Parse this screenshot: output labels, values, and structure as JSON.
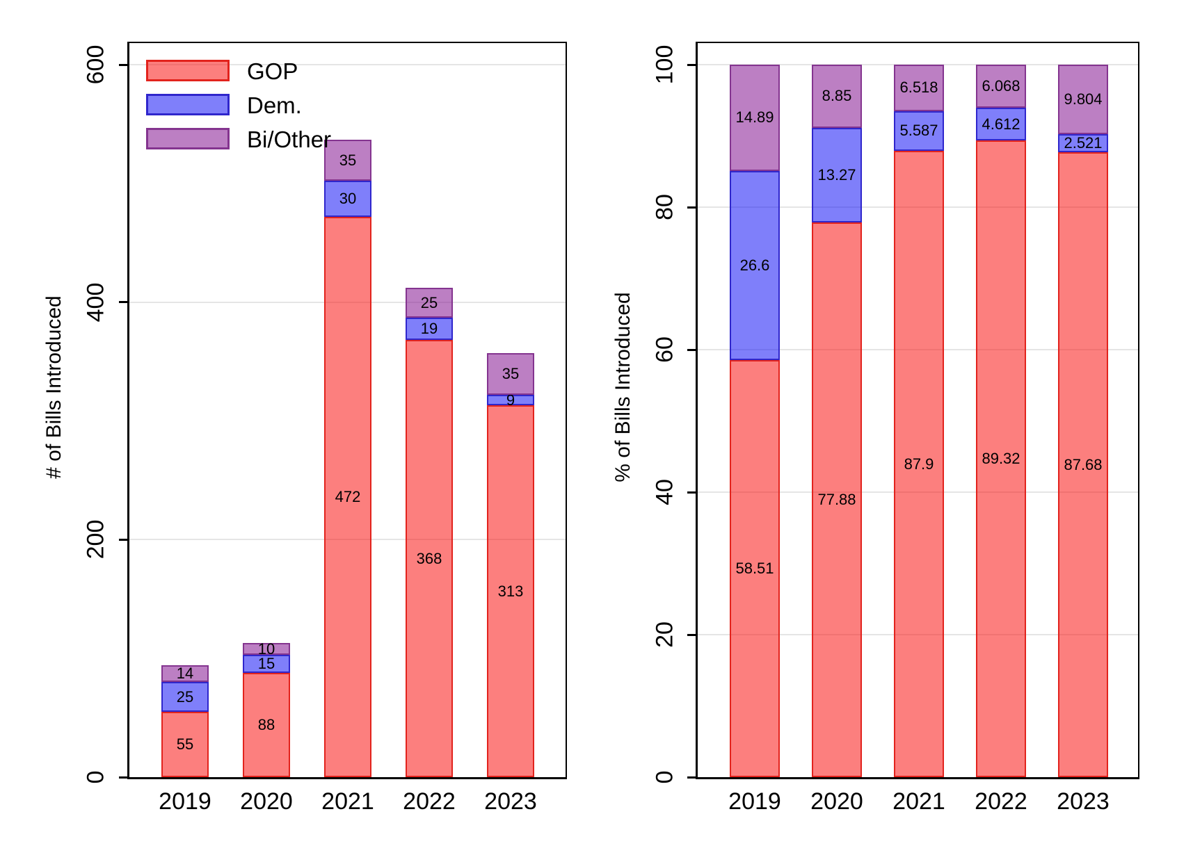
{
  "figure": {
    "background": "#ffffff",
    "gridline_color": "#e5e5e5",
    "axis_color": "#000000"
  },
  "legend": {
    "position": "top-left-inside-left-plot",
    "items": [
      {
        "label": "GOP",
        "fill": "rgba(250,10,8,0.52)",
        "stroke": "#e2231d"
      },
      {
        "label": "Dem.",
        "fill": "rgba(10,10,245,0.52)",
        "stroke": "#2f26cc"
      },
      {
        "label": "Bi/Other",
        "fill": "rgba(126,10,140,0.52)",
        "stroke": "#84348f"
      }
    ]
  },
  "chart_data": [
    {
      "type": "bar",
      "stacked": true,
      "title": "",
      "ylabel": "# of Bills Introduced",
      "xlabel": "",
      "categories": [
        "2019",
        "2020",
        "2021",
        "2022",
        "2023"
      ],
      "series": [
        {
          "name": "GOP",
          "values": [
            55,
            88,
            472,
            368,
            313
          ],
          "labels": [
            "55",
            "88",
            "472",
            "368",
            "313"
          ],
          "fill": "rgba(250,10,8,0.52)",
          "stroke": "#e2231d"
        },
        {
          "name": "Dem.",
          "values": [
            25,
            15,
            30,
            19,
            9
          ],
          "labels": [
            "25",
            "15",
            "30",
            "19",
            "9"
          ],
          "fill": "rgba(10,10,245,0.52)",
          "stroke": "#2f26cc"
        },
        {
          "name": "Bi/Other",
          "values": [
            14,
            10,
            35,
            25,
            35
          ],
          "labels": [
            "14",
            "10",
            "35",
            "25",
            "35"
          ],
          "fill": "rgba(126,10,140,0.52)",
          "stroke": "#84348f"
        }
      ],
      "totals": [
        94,
        113,
        537,
        412,
        357
      ],
      "ylim": [
        0,
        618
      ],
      "yticks": [
        0,
        200,
        400,
        600
      ],
      "ytick_labels": [
        "0",
        "200",
        "400",
        "600"
      ],
      "grid": true,
      "legend_visible": true
    },
    {
      "type": "bar",
      "stacked": true,
      "title": "",
      "ylabel": "% of Bills Introduced",
      "xlabel": "",
      "categories": [
        "2019",
        "2020",
        "2021",
        "2022",
        "2023"
      ],
      "series": [
        {
          "name": "GOP",
          "values": [
            58.51,
            77.88,
            87.9,
            89.32,
            87.68
          ],
          "labels": [
            "58.51",
            "77.88",
            "87.9",
            "89.32",
            "87.68"
          ],
          "fill": "rgba(250,10,8,0.52)",
          "stroke": "#e2231d"
        },
        {
          "name": "Dem.",
          "values": [
            26.6,
            13.27,
            5.587,
            4.612,
            2.521
          ],
          "labels": [
            "26.6",
            "13.27",
            "5.587",
            "4.612",
            "2.521"
          ],
          "fill": "rgba(10,10,245,0.52)",
          "stroke": "#2f26cc"
        },
        {
          "name": "Bi/Other",
          "values": [
            14.89,
            8.85,
            6.518,
            6.068,
            9.804
          ],
          "labels": [
            "14.89",
            "8.85",
            "6.518",
            "6.068",
            "9.804"
          ],
          "fill": "rgba(126,10,140,0.52)",
          "stroke": "#84348f"
        }
      ],
      "totals": [
        100,
        100,
        100,
        100,
        100
      ],
      "ylim": [
        0,
        103
      ],
      "yticks": [
        0,
        20,
        40,
        60,
        80,
        100
      ],
      "ytick_labels": [
        "0",
        "20",
        "40",
        "60",
        "80",
        "100"
      ],
      "grid": true,
      "legend_visible": false
    }
  ]
}
